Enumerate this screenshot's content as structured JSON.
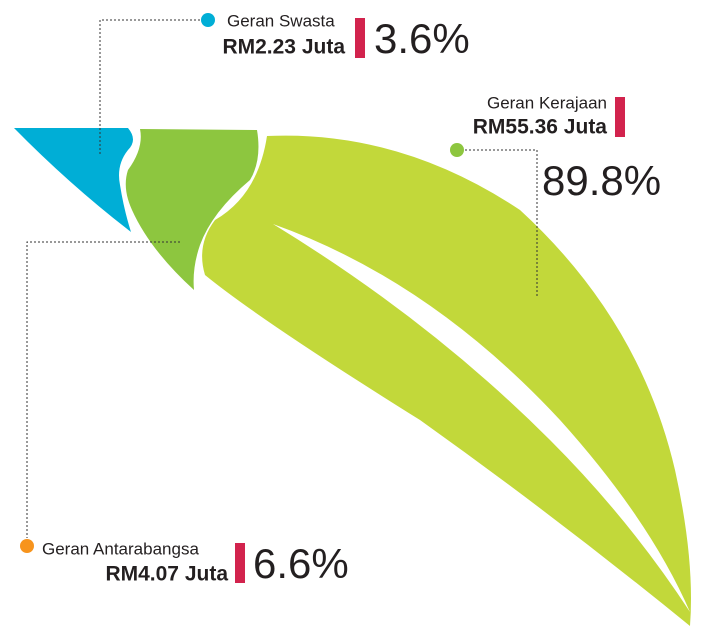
{
  "items": [
    {
      "label": "Geran Swasta",
      "amount": "RM2.23 Juta",
      "percent": "3.6%"
    },
    {
      "label": "Geran Kerajaan",
      "amount": "RM55.36 Juta",
      "percent": "89.8%"
    },
    {
      "label": "Geran Antarabangsa",
      "amount": "RM4.07 Juta",
      "percent": "6.6%"
    }
  ]
}
